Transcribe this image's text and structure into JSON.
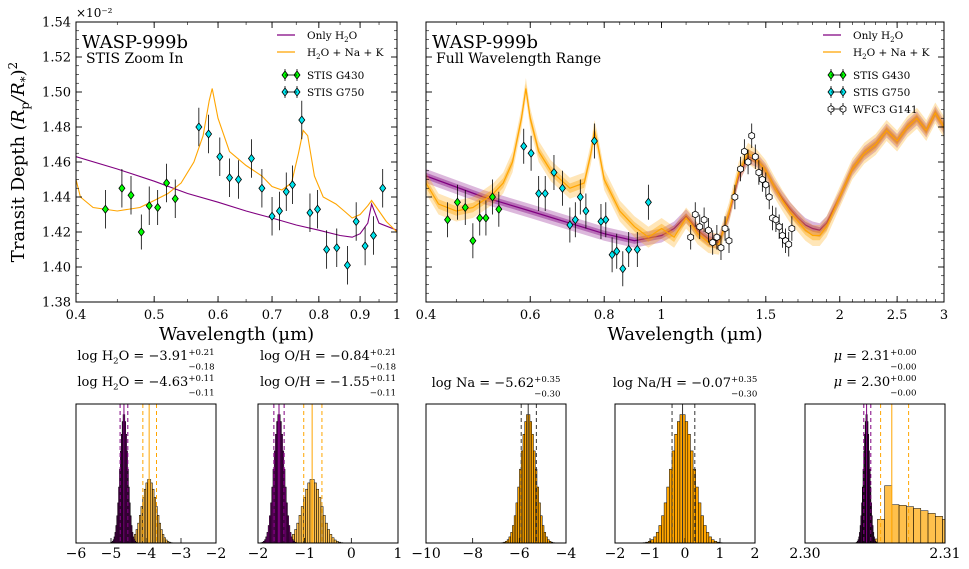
{
  "figure": {
    "ylabel": "Transit Depth $(R_p/R_*)^2$",
    "offset_label": "×10⁻²"
  },
  "chart_data": [
    {
      "type": "line",
      "panel": "zoom",
      "title": "WASP-999b",
      "subtitle": "STIS Zoom In",
      "xlabel": "Wavelength (µm)",
      "xscale": "log",
      "xlim": [
        0.4,
        1.0
      ],
      "xticks": [
        0.4,
        0.5,
        0.6,
        0.7,
        0.8,
        0.9,
        1
      ],
      "ylim": [
        1.38,
        1.54
      ],
      "yticks": [
        1.38,
        1.4,
        1.42,
        1.44,
        1.46,
        1.48,
        1.5,
        1.52,
        1.54
      ],
      "legend_position": "top-right",
      "colors": {
        "h2o": "#800080",
        "full": "#ffa500",
        "g430": "#00ff00",
        "g750": "#00e5ee",
        "wfc3": "#ffffff"
      },
      "series": [
        {
          "name": "Only H$_2$O",
          "kind": "line",
          "color": "#800080",
          "x": [
            0.4,
            0.45,
            0.5,
            0.55,
            0.6,
            0.65,
            0.7,
            0.75,
            0.8,
            0.85,
            0.88,
            0.9,
            0.92,
            0.93,
            0.95,
            1.0
          ],
          "y": [
            1.463,
            1.456,
            1.449,
            1.442,
            1.437,
            1.432,
            1.428,
            1.424,
            1.421,
            1.418,
            1.417,
            1.419,
            1.425,
            1.436,
            1.425,
            1.421
          ]
        },
        {
          "name": "H$_2$O + Na + K",
          "kind": "line",
          "color": "#ffa500",
          "x": [
            0.4,
            0.405,
            0.42,
            0.45,
            0.48,
            0.5,
            0.52,
            0.54,
            0.56,
            0.575,
            0.585,
            0.59,
            0.6,
            0.62,
            0.65,
            0.68,
            0.7,
            0.72,
            0.74,
            0.755,
            0.765,
            0.775,
            0.79,
            0.81,
            0.84,
            0.86,
            0.88,
            0.9,
            0.92,
            0.93,
            0.95,
            0.97,
            1.0
          ],
          "y": [
            1.45,
            1.44,
            1.434,
            1.432,
            1.434,
            1.438,
            1.442,
            1.448,
            1.46,
            1.475,
            1.495,
            1.502,
            1.485,
            1.466,
            1.458,
            1.452,
            1.446,
            1.444,
            1.448,
            1.465,
            1.478,
            1.475,
            1.452,
            1.44,
            1.436,
            1.432,
            1.428,
            1.43,
            1.435,
            1.438,
            1.432,
            1.426,
            1.42
          ]
        },
        {
          "name": "STIS G430",
          "kind": "errorbar",
          "color": "#00ff00",
          "marker": "diamond",
          "x": [
            0.435,
            0.456,
            0.468,
            0.482,
            0.493,
            0.505,
            0.518,
            0.531
          ],
          "y": [
            1.433,
            1.445,
            1.441,
            1.42,
            1.435,
            1.434,
            1.448,
            1.439
          ],
          "err": [
            0.011,
            0.011,
            0.011,
            0.01,
            0.011,
            0.01,
            0.011,
            0.011
          ]
        },
        {
          "name": "STIS G750",
          "kind": "errorbar",
          "color": "#00e5ee",
          "marker": "diamond",
          "x": [
            0.568,
            0.584,
            0.603,
            0.62,
            0.636,
            0.66,
            0.68,
            0.7,
            0.715,
            0.729,
            0.742,
            0.762,
            0.78,
            0.797,
            0.818,
            0.842,
            0.868,
            0.89,
            0.913,
            0.935,
            0.96
          ],
          "y": [
            1.48,
            1.476,
            1.463,
            1.451,
            1.45,
            1.462,
            1.445,
            1.429,
            1.432,
            1.443,
            1.447,
            1.484,
            1.431,
            1.433,
            1.41,
            1.411,
            1.401,
            1.426,
            1.412,
            1.418,
            1.445
          ],
          "err": [
            0.011,
            0.011,
            0.011,
            0.011,
            0.011,
            0.011,
            0.011,
            0.011,
            0.011,
            0.011,
            0.011,
            0.011,
            0.011,
            0.011,
            0.011,
            0.011,
            0.011,
            0.011,
            0.011,
            0.011,
            0.011
          ]
        }
      ]
    },
    {
      "type": "line",
      "panel": "full",
      "title": "WASP-999b",
      "subtitle": "Full Wavelength Range",
      "xlabel": "Wavelength (µm)",
      "xscale": "log",
      "xlim": [
        0.4,
        3.0
      ],
      "xticks": [
        0.4,
        0.6,
        0.8,
        1,
        1.5,
        2,
        2.5,
        3
      ],
      "ylim": [
        1.38,
        1.54
      ],
      "legend_position": "top-right",
      "series": [
        {
          "name": "Only H$_2$O",
          "kind": "band",
          "color": "#800080",
          "x": [
            0.4,
            0.5,
            0.6,
            0.7,
            0.8,
            0.9,
            1.0,
            1.05,
            1.1,
            1.12,
            1.15,
            1.2,
            1.25,
            1.3,
            1.35,
            1.4,
            1.45,
            1.5,
            1.55,
            1.6,
            1.65,
            1.7,
            1.75,
            1.8,
            1.85,
            1.9,
            2.0,
            2.1,
            2.2,
            2.3,
            2.4,
            2.5,
            2.6,
            2.7,
            2.8,
            2.9,
            3.0
          ],
          "y": [
            1.452,
            1.44,
            1.432,
            1.425,
            1.419,
            1.415,
            1.418,
            1.422,
            1.429,
            1.426,
            1.421,
            1.416,
            1.414,
            1.43,
            1.452,
            1.463,
            1.461,
            1.455,
            1.446,
            1.439,
            1.433,
            1.428,
            1.424,
            1.422,
            1.421,
            1.425,
            1.44,
            1.456,
            1.465,
            1.47,
            1.478,
            1.472,
            1.48,
            1.485,
            1.478,
            1.488,
            1.48
          ],
          "band": 0.004
        },
        {
          "name": "H$_2$O + Na + K",
          "kind": "band",
          "color": "#ffa500",
          "x": [
            0.4,
            0.42,
            0.45,
            0.48,
            0.5,
            0.52,
            0.54,
            0.56,
            0.58,
            0.59,
            0.6,
            0.62,
            0.65,
            0.7,
            0.74,
            0.76,
            0.77,
            0.78,
            0.8,
            0.85,
            0.9,
            0.95,
            1.0,
            1.05,
            1.1,
            1.12,
            1.15,
            1.2,
            1.25,
            1.3,
            1.35,
            1.4,
            1.45,
            1.5,
            1.55,
            1.6,
            1.65,
            1.7,
            1.75,
            1.8,
            1.85,
            1.9,
            2.0,
            2.1,
            2.2,
            2.3,
            2.4,
            2.5,
            2.6,
            2.7,
            2.8,
            2.9,
            3.0
          ],
          "y": [
            1.448,
            1.436,
            1.432,
            1.434,
            1.438,
            1.442,
            1.448,
            1.46,
            1.485,
            1.502,
            1.485,
            1.466,
            1.455,
            1.445,
            1.448,
            1.465,
            1.478,
            1.47,
            1.45,
            1.432,
            1.423,
            1.417,
            1.422,
            1.417,
            1.428,
            1.425,
            1.419,
            1.414,
            1.413,
            1.431,
            1.454,
            1.465,
            1.461,
            1.455,
            1.446,
            1.438,
            1.431,
            1.426,
            1.421,
            1.418,
            1.418,
            1.423,
            1.44,
            1.456,
            1.465,
            1.47,
            1.478,
            1.472,
            1.48,
            1.485,
            1.478,
            1.488,
            1.48
          ],
          "band": 0.006
        },
        {
          "name": "STIS G430",
          "kind": "errorbar",
          "color": "#00ff00",
          "marker": "diamond",
          "x": [
            0.435,
            0.452,
            0.466,
            0.48,
            0.493,
            0.505,
            0.518,
            0.531
          ],
          "y": [
            1.427,
            1.437,
            1.434,
            1.415,
            1.428,
            1.428,
            1.44,
            1.433
          ],
          "err": [
            0.01,
            0.01,
            0.01,
            0.01,
            0.01,
            0.01,
            0.01,
            0.01
          ]
        },
        {
          "name": "STIS G750",
          "kind": "errorbar",
          "color": "#00e5ee",
          "marker": "diamond",
          "x": [
            0.585,
            0.602,
            0.62,
            0.636,
            0.658,
            0.68,
            0.7,
            0.715,
            0.729,
            0.745,
            0.77,
            0.79,
            0.805,
            0.825,
            0.84,
            0.86,
            0.88,
            0.91,
            0.95
          ],
          "y": [
            1.469,
            1.465,
            1.442,
            1.442,
            1.454,
            1.445,
            1.424,
            1.427,
            1.44,
            1.432,
            1.472,
            1.426,
            1.427,
            1.407,
            1.409,
            1.399,
            1.41,
            1.41,
            1.437
          ],
          "err": [
            0.01,
            0.01,
            0.01,
            0.01,
            0.01,
            0.01,
            0.01,
            0.01,
            0.01,
            0.01,
            0.01,
            0.01,
            0.01,
            0.01,
            0.01,
            0.01,
            0.01,
            0.01,
            0.01
          ]
        },
        {
          "name": "WFC3 G141",
          "kind": "errorbar",
          "color": "#ffffff",
          "marker": "hexagon",
          "x": [
            1.12,
            1.14,
            1.16,
            1.18,
            1.2,
            1.22,
            1.24,
            1.26,
            1.28,
            1.3,
            1.33,
            1.36,
            1.38,
            1.4,
            1.42,
            1.44,
            1.46,
            1.48,
            1.5,
            1.52,
            1.54,
            1.56,
            1.58,
            1.6,
            1.62,
            1.64,
            1.66
          ],
          "y": [
            1.417,
            1.43,
            1.423,
            1.427,
            1.421,
            1.414,
            1.417,
            1.411,
            1.422,
            1.415,
            1.44,
            1.456,
            1.466,
            1.46,
            1.475,
            1.463,
            1.454,
            1.45,
            1.447,
            1.44,
            1.428,
            1.427,
            1.423,
            1.418,
            1.415,
            1.413,
            1.422
          ],
          "err": [
            0.007,
            0.007,
            0.007,
            0.007,
            0.007,
            0.007,
            0.007,
            0.007,
            0.007,
            0.007,
            0.007,
            0.007,
            0.007,
            0.007,
            0.007,
            0.007,
            0.007,
            0.007,
            0.007,
            0.007,
            0.007,
            0.007,
            0.007,
            0.007,
            0.007,
            0.007,
            0.007
          ]
        }
      ]
    },
    {
      "type": "histogram",
      "panel": "posterior-h2o",
      "xlim": [
        -6,
        -2
      ],
      "xticks": [
        -6,
        -5,
        -4,
        -3,
        -2
      ],
      "labels": [
        {
          "text": "log H$_2$O = $-3.91^{+0.21}_{-0.18}$",
          "color": "#ffa500"
        },
        {
          "text": "log H$_2$O = $-4.63^{+0.11}_{-0.11}$",
          "color": "#800080"
        }
      ],
      "series": [
        {
          "name": "orange",
          "color": "#ffa500",
          "median": -3.91,
          "sigma": 0.2,
          "lines": [
            -4.09,
            -3.91,
            -3.7
          ]
        },
        {
          "name": "purple",
          "color": "#800080",
          "median": -4.63,
          "sigma": 0.11,
          "lines": [
            -4.74,
            -4.63,
            -4.52
          ]
        }
      ]
    },
    {
      "type": "histogram",
      "panel": "posterior-oh",
      "xlim": [
        -2,
        1
      ],
      "xticks": [
        -2,
        -1,
        0,
        1
      ],
      "labels": [
        {
          "text": "log O/H  = $-0.84^{+0.21}_{-0.18}$",
          "color": "#ffa500"
        },
        {
          "text": "log O/H  = $-1.55^{+0.11}_{-0.11}$",
          "color": "#800080"
        }
      ],
      "series": [
        {
          "name": "orange",
          "color": "#ffa500",
          "median": -0.84,
          "sigma": 0.2,
          "lines": [
            -1.02,
            -0.84,
            -0.63
          ]
        },
        {
          "name": "purple",
          "color": "#800080",
          "median": -1.55,
          "sigma": 0.11,
          "lines": [
            -1.66,
            -1.55,
            -1.44
          ]
        }
      ]
    },
    {
      "type": "histogram",
      "panel": "posterior-na",
      "xlim": [
        -10,
        -4
      ],
      "xticks": [
        -10,
        -8,
        -6,
        -4
      ],
      "labels": [
        {
          "text": "log Na = $-5.62^{+0.35}_{-0.30}$",
          "color": "#000000"
        }
      ],
      "series": [
        {
          "name": "orange",
          "color": "#ffa500",
          "median": -5.62,
          "sigma": 0.32,
          "lines": [
            -5.92,
            -5.62,
            -5.27
          ]
        }
      ]
    },
    {
      "type": "histogram",
      "panel": "posterior-nah",
      "xlim": [
        -2,
        2
      ],
      "xticks": [
        -2,
        -1,
        0,
        1,
        2
      ],
      "labels": [
        {
          "text": "log Na/H = $-0.07^{+0.35}_{-0.30}$",
          "color": "#000000"
        }
      ],
      "series": [
        {
          "name": "orange",
          "color": "#ffa500",
          "median": -0.07,
          "sigma": 0.32,
          "lines": [
            -0.37,
            -0.07,
            0.28
          ]
        }
      ]
    },
    {
      "type": "histogram",
      "panel": "posterior-mu",
      "xlim": [
        2.3,
        2.31
      ],
      "xticks": [
        2.3,
        2.31
      ],
      "labels": [
        {
          "text": "$\\mu$ = $2.31^{+0.00}_{-0.00}$",
          "color": "#ffa500"
        },
        {
          "text": "$\\mu$ = $2.30^{+0.00}_{-0.00}$",
          "color": "#800080"
        }
      ],
      "series": [
        {
          "name": "orange",
          "color": "#ffa500",
          "median": 2.3062,
          "sigma": 0.0022,
          "lines": [
            2.3054,
            2.3062,
            2.3074
          ],
          "tail": true
        },
        {
          "name": "purple",
          "color": "#800080",
          "median": 2.3044,
          "sigma": 0.00022,
          "lines": [
            2.3042,
            2.3044,
            2.3047
          ]
        }
      ]
    }
  ]
}
